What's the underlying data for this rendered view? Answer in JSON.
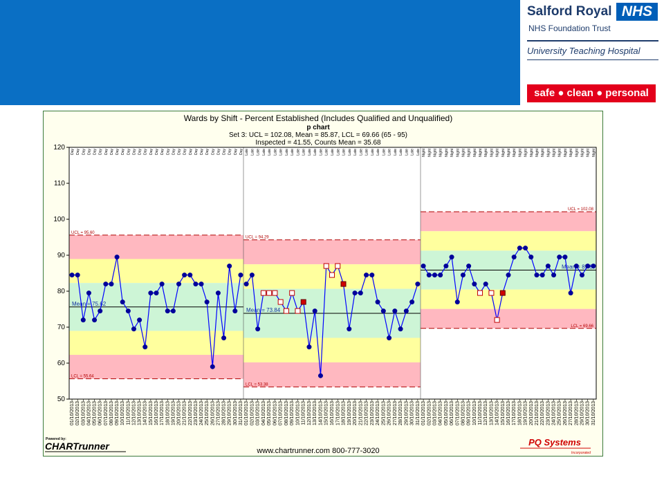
{
  "branding": {
    "org_name": "Salford Royal",
    "nhs_badge": "NHS",
    "trust_name": "NHS Foundation Trust",
    "university_line": "University Teaching Hospital",
    "tagline": "safe ● clean ● personal",
    "banner_color": "#0a6fc4"
  },
  "chart_data": {
    "type": "line",
    "chart_kind": "p chart",
    "title": "Wards by Shift - Percent Established (Includes Qualified and Unqualified)",
    "subtitle": "p chart",
    "stats_line1": "Set 3: UCL = 102.08, Mean = 85.87, LCL = 69.66 (65 - 95)",
    "stats_line2": "Inspected = 41.55, Counts Mean = 35.68",
    "ylim": [
      50,
      120
    ],
    "yticks": [
      50,
      60,
      70,
      80,
      90,
      100,
      110,
      120
    ],
    "grid": false,
    "segments": [
      {
        "shift": "Day",
        "ucl": 95.6,
        "mean": 75.62,
        "lcl": 55.64,
        "ucl_label": "UCL = 95.60",
        "mean_label": "Mean = 75.62",
        "lcl_label": "LCL = 55.64",
        "dates": [
          "01/10/2013",
          "02/10/2013",
          "03/10/2013",
          "04/10/2013",
          "05/10/2013",
          "06/10/2013",
          "07/10/2013",
          "08/10/2013",
          "09/10/2013",
          "10/10/2013",
          "11/10/2013",
          "12/10/2013",
          "13/10/2013",
          "14/10/2013",
          "15/10/2013",
          "16/10/2013",
          "17/10/2013",
          "18/10/2013",
          "19/10/2013",
          "20/10/2013",
          "21/10/2013",
          "22/10/2013",
          "23/10/2013",
          "24/10/2013",
          "25/10/2013",
          "26/10/2013",
          "27/10/2013",
          "28/10/2013",
          "29/10/2013",
          "30/10/2013",
          "31/10/2013"
        ],
        "values": [
          84.5,
          84.5,
          72,
          79.5,
          72,
          74.5,
          82,
          82,
          89.5,
          77,
          74.5,
          69.5,
          72,
          64.5,
          79.5,
          79.5,
          82,
          74.5,
          74.5,
          82,
          84.5,
          84.5,
          82,
          82,
          77,
          59,
          79.5,
          67,
          87,
          74.5,
          84.5
        ],
        "flags": [
          "n",
          "n",
          "n",
          "n",
          "n",
          "n",
          "n",
          "n",
          "n",
          "n",
          "n",
          "n",
          "n",
          "n",
          "n",
          "n",
          "n",
          "n",
          "n",
          "n",
          "n",
          "n",
          "n",
          "n",
          "n",
          "n",
          "n",
          "n",
          "n",
          "n",
          "n"
        ]
      },
      {
        "shift": "Late",
        "ucl": 94.29,
        "mean": 73.84,
        "lcl": 53.38,
        "ucl_label": "UCL = 94.29",
        "mean_label": "Mean = 73.84",
        "lcl_label": "LCL = 53.38",
        "dates": [
          "01/10/2013",
          "02/10/2013",
          "03/10/2013",
          "04/10/2013",
          "05/10/2013",
          "06/10/2013",
          "07/10/2013",
          "08/10/2013",
          "09/10/2013",
          "10/10/2013",
          "11/10/2013",
          "12/10/2013",
          "13/10/2013",
          "14/10/2013",
          "15/10/2013",
          "16/10/2013",
          "17/10/2013",
          "18/10/2013",
          "19/10/2013",
          "20/10/2013",
          "21/10/2013",
          "22/10/2013",
          "23/10/2013",
          "24/10/2013",
          "25/10/2013",
          "26/10/2013",
          "27/10/2013",
          "28/10/2013",
          "29/10/2013",
          "30/10/2013",
          "31/10/2013"
        ],
        "values": [
          82,
          84.5,
          69.5,
          79.5,
          79.5,
          79.5,
          77,
          74.5,
          79.5,
          74.5,
          77,
          64.5,
          74.5,
          56.5,
          87,
          84.5,
          87,
          82,
          69.5,
          79.5,
          79.5,
          84.5,
          84.5,
          77,
          74.5,
          67,
          74.5,
          69.5,
          74.5,
          77,
          82
        ],
        "flags": [
          "n",
          "n",
          "n",
          "o",
          "o",
          "o",
          "o",
          "o",
          "o",
          "o",
          "r",
          "n",
          "n",
          "n",
          "o",
          "o",
          "o",
          "r",
          "n",
          "n",
          "n",
          "n",
          "n",
          "n",
          "n",
          "n",
          "n",
          "n",
          "n",
          "n",
          "n"
        ]
      },
      {
        "shift": "Night",
        "ucl": 102.08,
        "mean": 85.87,
        "lcl": 69.66,
        "ucl_label": "UCL = 102.08",
        "mean_label": "Mean = 85.87",
        "lcl_label": "LCL = 69.66",
        "dates": [
          "01/10/2013",
          "02/10/2013",
          "03/10/2013",
          "04/10/2013",
          "05/10/2013",
          "06/10/2013",
          "07/10/2013",
          "08/10/2013",
          "09/10/2013",
          "10/10/2013",
          "11/10/2013",
          "12/10/2013",
          "13/10/2013",
          "14/10/2013",
          "15/10/2013",
          "16/10/2013",
          "17/10/2013",
          "18/10/2013",
          "19/10/2013",
          "20/10/2013",
          "21/10/2013",
          "22/10/2013",
          "23/10/2013",
          "24/10/2013",
          "25/10/2013",
          "26/10/2013",
          "27/10/2013",
          "28/10/2013",
          "29/10/2013",
          "30/10/2013",
          "31/10/2013"
        ],
        "values": [
          87,
          84.5,
          84.5,
          84.5,
          87,
          89.5,
          77,
          84.5,
          87,
          82,
          79.5,
          82,
          79.5,
          72,
          79.5,
          84.5,
          89.5,
          92,
          92,
          89.5,
          84.5,
          84.5,
          87,
          84.5,
          89.5,
          89.5,
          79.5,
          87,
          84.5,
          87,
          87
        ],
        "flags": [
          "n",
          "n",
          "n",
          "n",
          "n",
          "n",
          "n",
          "n",
          "n",
          "n",
          "o",
          "n",
          "o",
          "o",
          "r",
          "n",
          "n",
          "n",
          "n",
          "n",
          "n",
          "n",
          "n",
          "n",
          "n",
          "n",
          "n",
          "n",
          "n",
          "n",
          "n"
        ]
      }
    ],
    "colors": {
      "outer_zone": "#ffb8c0",
      "middle_zone": "#ffff9e",
      "inner_zone": "#cdf5d6",
      "limit_line": "#b00000",
      "mean_line": "#000000",
      "series_line": "#0000ff",
      "point": "#00009a",
      "flag_red": "#d00000",
      "flag_outline": "#c00000"
    },
    "footer": {
      "powered_by": "Powered by:",
      "brand": "CHARTrunner",
      "url_line": "www.chartrunner.com 800-777-3020",
      "vendor": "PQ Systems",
      "vendor_sub": "Incorporated"
    }
  }
}
